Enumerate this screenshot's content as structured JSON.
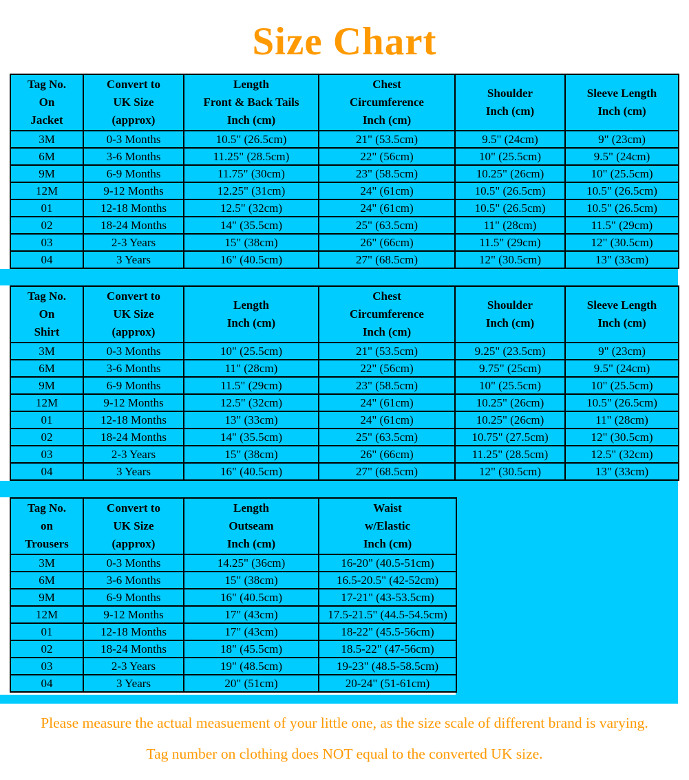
{
  "page": {
    "title": "Size Chart",
    "board_color": "#00CCFF",
    "accent_color": "#FF9900",
    "border_color": "#000000",
    "text_color": "#000000"
  },
  "tables": [
    {
      "name": "jacket",
      "headers": [
        "Tag No.\nOn\nJacket",
        "Convert to\nUK Size\n(approx)",
        "Length\nFront & Back Tails\nInch (cm)",
        "Chest\nCircumference\nInch (cm)",
        "Shoulder\nInch (cm)",
        "Sleeve Length\nInch (cm)"
      ],
      "rows": [
        [
          "3M",
          "0-3 Months",
          "10.5\" (26.5cm)",
          "21\" (53.5cm)",
          "9.5\" (24cm)",
          "9\" (23cm)"
        ],
        [
          "6M",
          "3-6 Months",
          "11.25\" (28.5cm)",
          "22\" (56cm)",
          "10\" (25.5cm)",
          "9.5\" (24cm)"
        ],
        [
          "9M",
          "6-9 Months",
          "11.75\" (30cm)",
          "23\" (58.5cm)",
          "10.25\" (26cm)",
          "10\" (25.5cm)"
        ],
        [
          "12M",
          "9-12 Months",
          "12.25\" (31cm)",
          "24\" (61cm)",
          "10.5\" (26.5cm)",
          "10.5\" (26.5cm)"
        ],
        [
          "01",
          "12-18 Months",
          "12.5\" (32cm)",
          "24\" (61cm)",
          "10.5\" (26.5cm)",
          "10.5\" (26.5cm)"
        ],
        [
          "02",
          "18-24 Months",
          "14\" (35.5cm)",
          "25\" (63.5cm)",
          "11\" (28cm)",
          "11.5\" (29cm)"
        ],
        [
          "03",
          "2-3 Years",
          "15\" (38cm)",
          "26\" (66cm)",
          "11.5\" (29cm)",
          "12\" (30.5cm)"
        ],
        [
          "04",
          "3 Years",
          "16\" (40.5cm)",
          "27\" (68.5cm)",
          "12\" (30.5cm)",
          "13\" (33cm)"
        ]
      ]
    },
    {
      "name": "shirt",
      "headers": [
        "Tag No.\nOn\nShirt",
        "Convert to\nUK Size\n(approx)",
        "Length\nInch (cm)",
        "Chest\nCircumference\nInch (cm)",
        "Shoulder\nInch (cm)",
        "Sleeve Length\nInch (cm)"
      ],
      "rows": [
        [
          "3M",
          "0-3 Months",
          "10\" (25.5cm)",
          "21\" (53.5cm)",
          "9.25\" (23.5cm)",
          "9\" (23cm)"
        ],
        [
          "6M",
          "3-6 Months",
          "11\" (28cm)",
          "22\" (56cm)",
          "9.75\" (25cm)",
          "9.5\" (24cm)"
        ],
        [
          "9M",
          "6-9 Months",
          "11.5\" (29cm)",
          "23\" (58.5cm)",
          "10\" (25.5cm)",
          "10\" (25.5cm)"
        ],
        [
          "12M",
          "9-12 Months",
          "12.5\" (32cm)",
          "24\" (61cm)",
          "10.25\" (26cm)",
          "10.5\" (26.5cm)"
        ],
        [
          "01",
          "12-18 Months",
          "13\" (33cm)",
          "24\" (61cm)",
          "10.25\" (26cm)",
          "11\" (28cm)"
        ],
        [
          "02",
          "18-24 Months",
          "14\" (35.5cm)",
          "25\" (63.5cm)",
          "10.75\" (27.5cm)",
          "12\" (30.5cm)"
        ],
        [
          "03",
          "2-3 Years",
          "15\" (38cm)",
          "26\" (66cm)",
          "11.25\" (28.5cm)",
          "12.5\" (32cm)"
        ],
        [
          "04",
          "3 Years",
          "16\" (40.5cm)",
          "27\" (68.5cm)",
          "12\" (30.5cm)",
          "13\" (33cm)"
        ]
      ]
    },
    {
      "name": "trousers",
      "headers": [
        "Tag No.\non\nTrousers",
        "Convert to\nUK Size\n(approx)",
        "Length\nOutseam\nInch (cm)",
        "Waist\nw/Elastic\nInch (cm)"
      ],
      "rows": [
        [
          "3M",
          "0-3 Months",
          "14.25\" (36cm)",
          "16-20\" (40.5-51cm)"
        ],
        [
          "6M",
          "3-6 Months",
          "15\" (38cm)",
          "16.5-20.5\" (42-52cm)"
        ],
        [
          "9M",
          "6-9 Months",
          "16\" (40.5cm)",
          "17-21\" (43-53.5cm)"
        ],
        [
          "12M",
          "9-12 Months",
          "17\" (43cm)",
          "17.5-21.5\" (44.5-54.5cm)"
        ],
        [
          "01",
          "12-18 Months",
          "17\" (43cm)",
          "18-22\" (45.5-56cm)"
        ],
        [
          "02",
          "18-24 Months",
          "18\" (45.5cm)",
          "18.5-22\" (47-56cm)"
        ],
        [
          "03",
          "2-3 Years",
          "19\" (48.5cm)",
          "19-23\" (48.5-58.5cm)"
        ],
        [
          "04",
          "3 Years",
          "20\" (51cm)",
          "20-24\" (51-61cm)"
        ]
      ]
    }
  ],
  "footer": {
    "line1": "Please measure the actual measuement of your little one, as the size scale of different brand is varying.",
    "line2": "Tag number on clothing does NOT equal to the converted UK size."
  }
}
